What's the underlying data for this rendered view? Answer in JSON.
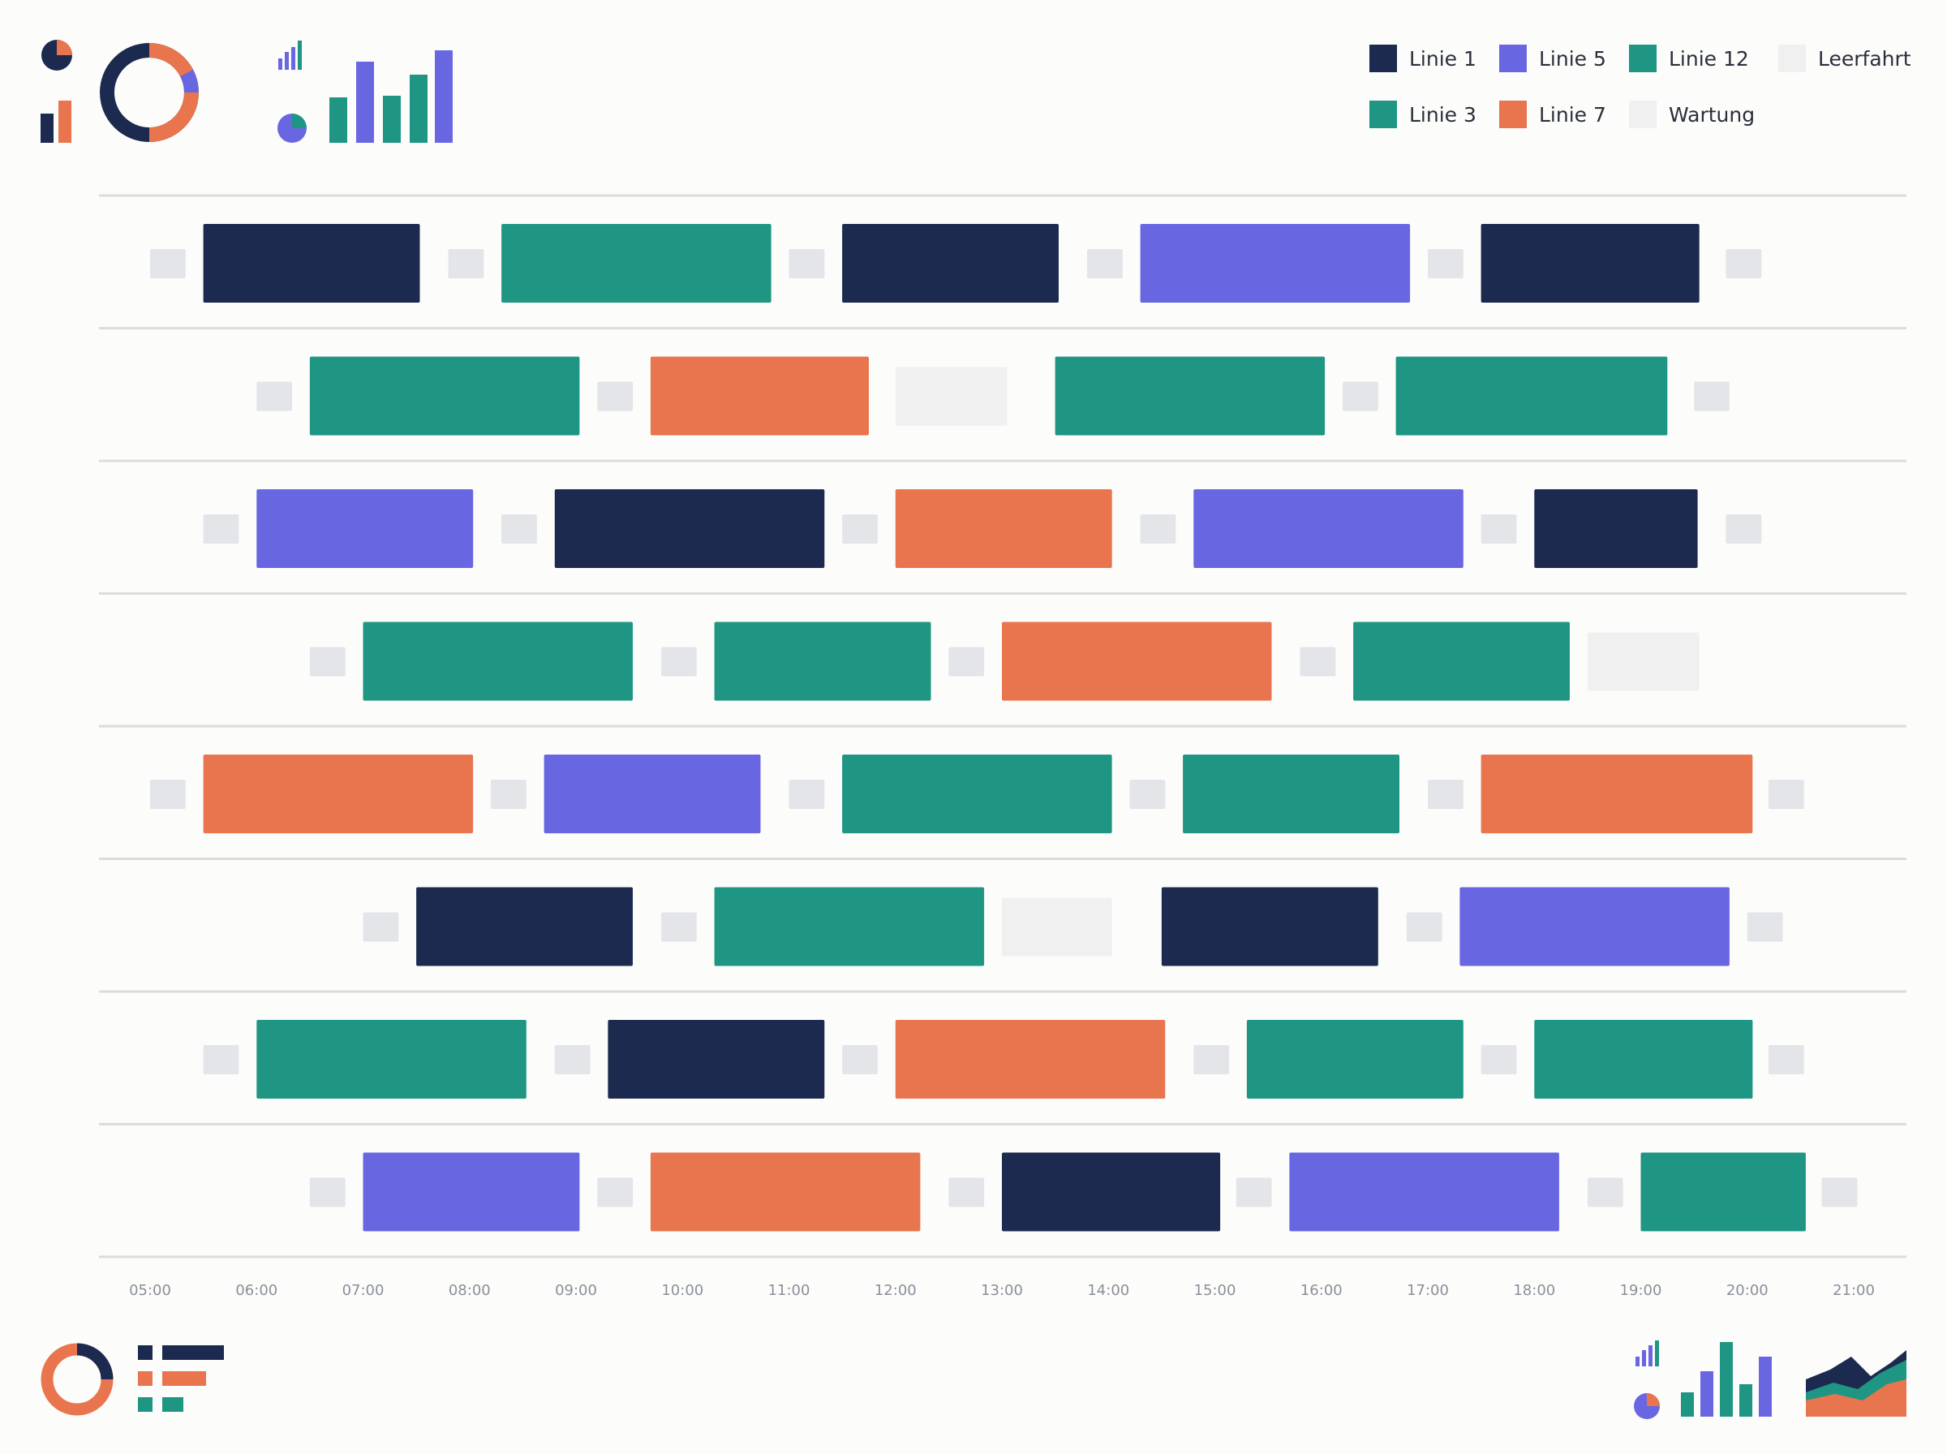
{
  "colors": {
    "Linie 1": "#1b2a4e",
    "Linie 3": "#1e9683",
    "Linie 5": "#6966e2",
    "Linie 7": "#e8754e",
    "Linie 12": "#1e9683",
    "Wartung": "#f0f0f0",
    "Leerfahrt": "#f0f0f0",
    "layover": "#e4e5e8",
    "grid": "#dcdcdc"
  },
  "decorations": [
    "pie-icon",
    "donut-icon",
    "bar-icon",
    "mini-bar-icon",
    "mini-pie-icon",
    "bar-chart-icon",
    "donut-icon-bottom",
    "legend-bars-icon",
    "area-chart-icon"
  ],
  "chart_data": {
    "type": "gantt",
    "title": "",
    "xlabel": "",
    "ylabel": "",
    "x_ticks": [
      "05:00",
      "06:00",
      "07:00",
      "08:00",
      "09:00",
      "10:00",
      "11:00",
      "12:00",
      "13:00",
      "14:00",
      "15:00",
      "16:00",
      "17:00",
      "18:00",
      "19:00",
      "20:00",
      "21:00"
    ],
    "x_range": [
      "05:00",
      "21:00"
    ],
    "legend_position": "top-right",
    "legend": [
      [
        "Linie 1",
        "Linie 5",
        "Linie 12",
        "Leerfahrt"
      ],
      [
        "Linie 3",
        "Linie 7",
        "Wartung"
      ]
    ],
    "rows": [
      {
        "blocks": [
          {
            "type": "Layover",
            "start": "05:00",
            "end": "05:20"
          },
          {
            "type": "Linie 1",
            "start": "05:30",
            "end": "07:32"
          },
          {
            "type": "Layover",
            "start": "07:48",
            "end": "08:08"
          },
          {
            "type": "Linie 3",
            "start": "08:18",
            "end": "10:50"
          },
          {
            "type": "Layover",
            "start": "11:00",
            "end": "11:20"
          },
          {
            "type": "Linie 1",
            "start": "11:30",
            "end": "13:32"
          },
          {
            "type": "Layover",
            "start": "13:48",
            "end": "14:08"
          },
          {
            "type": "Linie 5",
            "start": "14:18",
            "end": "16:50"
          },
          {
            "type": "Layover",
            "start": "17:00",
            "end": "17:20"
          },
          {
            "type": "Linie 1",
            "start": "17:30",
            "end": "19:33"
          },
          {
            "type": "Layover",
            "start": "19:48",
            "end": "20:08"
          }
        ]
      },
      {
        "blocks": [
          {
            "type": "Layover",
            "start": "06:00",
            "end": "06:20"
          },
          {
            "type": "Linie 3",
            "start": "06:30",
            "end": "09:02"
          },
          {
            "type": "Layover",
            "start": "09:12",
            "end": "09:32"
          },
          {
            "type": "Linie 7",
            "start": "09:42",
            "end": "11:45"
          },
          {
            "type": "Wartung",
            "start": "12:00",
            "end": "13:03"
          },
          {
            "type": "Linie 3",
            "start": "13:30",
            "end": "16:02"
          },
          {
            "type": "Layover",
            "start": "16:12",
            "end": "16:32"
          },
          {
            "type": "Linie 12",
            "start": "16:42",
            "end": "19:15"
          },
          {
            "type": "Layover",
            "start": "19:30",
            "end": "19:50"
          }
        ]
      },
      {
        "blocks": [
          {
            "type": "Layover",
            "start": "05:30",
            "end": "05:50"
          },
          {
            "type": "Linie 5",
            "start": "06:00",
            "end": "08:02"
          },
          {
            "type": "Layover",
            "start": "08:18",
            "end": "08:38"
          },
          {
            "type": "Linie 1",
            "start": "08:48",
            "end": "11:20"
          },
          {
            "type": "Layover",
            "start": "11:30",
            "end": "11:50"
          },
          {
            "type": "Linie 7",
            "start": "12:00",
            "end": "14:02"
          },
          {
            "type": "Layover",
            "start": "14:18",
            "end": "14:38"
          },
          {
            "type": "Linie 5",
            "start": "14:48",
            "end": "17:20"
          },
          {
            "type": "Layover",
            "start": "17:30",
            "end": "17:50"
          },
          {
            "type": "Linie 1",
            "start": "18:00",
            "end": "19:32"
          },
          {
            "type": "Layover",
            "start": "19:48",
            "end": "20:08"
          }
        ]
      },
      {
        "blocks": [
          {
            "type": "Layover",
            "start": "06:30",
            "end": "06:50"
          },
          {
            "type": "Linie 3",
            "start": "07:00",
            "end": "09:32"
          },
          {
            "type": "Layover",
            "start": "09:48",
            "end": "10:08"
          },
          {
            "type": "Linie 12",
            "start": "10:18",
            "end": "12:20"
          },
          {
            "type": "Layover",
            "start": "12:30",
            "end": "12:50"
          },
          {
            "type": "Linie 7",
            "start": "13:00",
            "end": "15:32"
          },
          {
            "type": "Layover",
            "start": "15:48",
            "end": "16:08"
          },
          {
            "type": "Linie 12",
            "start": "16:18",
            "end": "18:20"
          },
          {
            "type": "Leerfahrt",
            "start": "18:30",
            "end": "19:33"
          }
        ]
      },
      {
        "blocks": [
          {
            "type": "Layover",
            "start": "05:00",
            "end": "05:20"
          },
          {
            "type": "Linie 7",
            "start": "05:30",
            "end": "08:02"
          },
          {
            "type": "Layover",
            "start": "08:12",
            "end": "08:32"
          },
          {
            "type": "Linie 5",
            "start": "08:42",
            "end": "10:44"
          },
          {
            "type": "Layover",
            "start": "11:00",
            "end": "11:20"
          },
          {
            "type": "Linie 3",
            "start": "11:30",
            "end": "14:02"
          },
          {
            "type": "Layover",
            "start": "14:12",
            "end": "14:32"
          },
          {
            "type": "Linie 12",
            "start": "14:42",
            "end": "16:44"
          },
          {
            "type": "Layover",
            "start": "17:00",
            "end": "17:20"
          },
          {
            "type": "Linie 7",
            "start": "17:30",
            "end": "20:03"
          },
          {
            "type": "Layover",
            "start": "20:12",
            "end": "20:32"
          }
        ]
      },
      {
        "blocks": [
          {
            "type": "Layover",
            "start": "07:00",
            "end": "07:20"
          },
          {
            "type": "Linie 1",
            "start": "07:30",
            "end": "09:32"
          },
          {
            "type": "Layover",
            "start": "09:48",
            "end": "10:08"
          },
          {
            "type": "Linie 3",
            "start": "10:18",
            "end": "12:50"
          },
          {
            "type": "Wartung",
            "start": "13:00",
            "end": "14:02"
          },
          {
            "type": "Linie 1",
            "start": "14:30",
            "end": "16:32"
          },
          {
            "type": "Layover",
            "start": "16:48",
            "end": "17:08"
          },
          {
            "type": "Linie 5",
            "start": "17:18",
            "end": "19:50"
          },
          {
            "type": "Layover",
            "start": "20:00",
            "end": "20:20"
          }
        ]
      },
      {
        "blocks": [
          {
            "type": "Layover",
            "start": "05:30",
            "end": "05:50"
          },
          {
            "type": "Linie 3",
            "start": "06:00",
            "end": "08:32"
          },
          {
            "type": "Layover",
            "start": "08:48",
            "end": "09:08"
          },
          {
            "type": "Linie 1",
            "start": "09:18",
            "end": "11:20"
          },
          {
            "type": "Layover",
            "start": "11:30",
            "end": "11:50"
          },
          {
            "type": "Linie 7",
            "start": "12:00",
            "end": "14:32"
          },
          {
            "type": "Layover",
            "start": "14:48",
            "end": "15:08"
          },
          {
            "type": "Linie 12",
            "start": "15:18",
            "end": "17:20"
          },
          {
            "type": "Layover",
            "start": "17:30",
            "end": "17:50"
          },
          {
            "type": "Linie 3",
            "start": "18:00",
            "end": "20:03"
          },
          {
            "type": "Layover",
            "start": "20:12",
            "end": "20:32"
          }
        ]
      },
      {
        "blocks": [
          {
            "type": "Layover",
            "start": "06:30",
            "end": "06:50"
          },
          {
            "type": "Linie 5",
            "start": "07:00",
            "end": "09:02"
          },
          {
            "type": "Layover",
            "start": "09:12",
            "end": "09:32"
          },
          {
            "type": "Linie 7",
            "start": "09:42",
            "end": "12:14"
          },
          {
            "type": "Layover",
            "start": "12:30",
            "end": "12:50"
          },
          {
            "type": "Linie 1",
            "start": "13:00",
            "end": "15:03"
          },
          {
            "type": "Layover",
            "start": "15:12",
            "end": "15:32"
          },
          {
            "type": "Linie 5",
            "start": "15:42",
            "end": "18:14"
          },
          {
            "type": "Layover",
            "start": "18:30",
            "end": "18:50"
          },
          {
            "type": "Linie 12",
            "start": "19:00",
            "end": "20:33"
          },
          {
            "type": "Layover",
            "start": "20:42",
            "end": "21:02"
          }
        ]
      }
    ]
  }
}
